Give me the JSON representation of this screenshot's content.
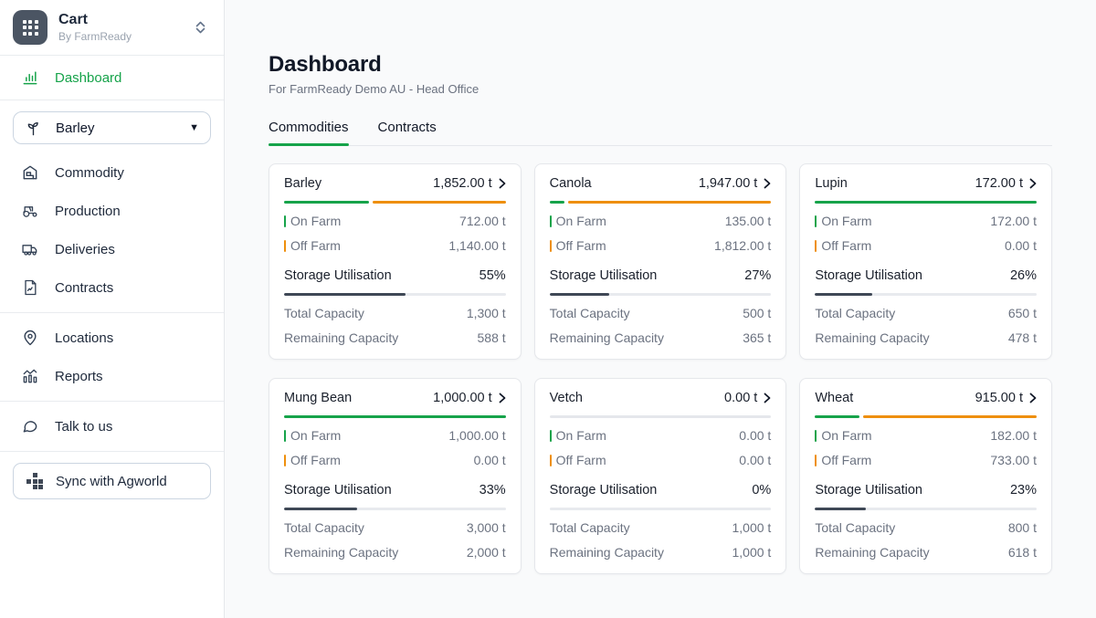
{
  "sidebar": {
    "brand": {
      "title": "Cart",
      "subtitle": "By FarmReady"
    },
    "dashboard_label": "Dashboard",
    "commodity_selector_value": "Barley",
    "nav_items": [
      {
        "label": "Commodity"
      },
      {
        "label": "Production"
      },
      {
        "label": "Deliveries"
      },
      {
        "label": "Contracts"
      }
    ],
    "secondary_items": [
      {
        "label": "Locations"
      },
      {
        "label": "Reports"
      }
    ],
    "talk_to_us_label": "Talk to us",
    "sync_button_label": "Sync with Agworld"
  },
  "header": {
    "title": "Dashboard",
    "subtitle": "For FarmReady Demo AU - Head Office"
  },
  "tabs": [
    {
      "label": "Commodities",
      "active": true
    },
    {
      "label": "Contracts",
      "active": false
    }
  ],
  "labels": {
    "on_farm": "On Farm",
    "off_farm": "Off Farm",
    "storage_utilisation": "Storage Utilisation",
    "total_capacity": "Total Capacity",
    "remaining_capacity": "Remaining Capacity"
  },
  "colors": {
    "accent_green": "#16a34a",
    "accent_orange": "#ee8f0d",
    "utilisation_fill": "#3f4856",
    "track_gray": "#e8eaee"
  },
  "commodities": [
    {
      "name": "Barley",
      "total": "1,852.00 t",
      "on_farm": "712.00 t",
      "off_farm": "1,140.00 t",
      "on_farm_pct": 38.4,
      "off_farm_pct": 61.6,
      "utilisation": "55%",
      "utilisation_pct": 55,
      "total_capacity": "1,300 t",
      "remaining_capacity": "588 t"
    },
    {
      "name": "Canola",
      "total": "1,947.00 t",
      "on_farm": "135.00 t",
      "off_farm": "1,812.00 t",
      "on_farm_pct": 6.9,
      "off_farm_pct": 93.1,
      "utilisation": "27%",
      "utilisation_pct": 27,
      "total_capacity": "500 t",
      "remaining_capacity": "365 t"
    },
    {
      "name": "Lupin",
      "total": "172.00 t",
      "on_farm": "172.00 t",
      "off_farm": "0.00 t",
      "on_farm_pct": 100,
      "off_farm_pct": 0,
      "utilisation": "26%",
      "utilisation_pct": 26,
      "total_capacity": "650 t",
      "remaining_capacity": "478 t"
    },
    {
      "name": "Mung Bean",
      "total": "1,000.00 t",
      "on_farm": "1,000.00 t",
      "off_farm": "0.00 t",
      "on_farm_pct": 100,
      "off_farm_pct": 0,
      "utilisation": "33%",
      "utilisation_pct": 33,
      "total_capacity": "3,000 t",
      "remaining_capacity": "2,000 t"
    },
    {
      "name": "Vetch",
      "total": "0.00 t",
      "on_farm": "0.00 t",
      "off_farm": "0.00 t",
      "on_farm_pct": 0,
      "off_farm_pct": 0,
      "utilisation": "0%",
      "utilisation_pct": 0,
      "total_capacity": "1,000 t",
      "remaining_capacity": "1,000 t"
    },
    {
      "name": "Wheat",
      "total": "915.00 t",
      "on_farm": "182.00 t",
      "off_farm": "733.00 t",
      "on_farm_pct": 19.9,
      "off_farm_pct": 80.1,
      "utilisation": "23%",
      "utilisation_pct": 23,
      "total_capacity": "800 t",
      "remaining_capacity": "618 t"
    }
  ]
}
